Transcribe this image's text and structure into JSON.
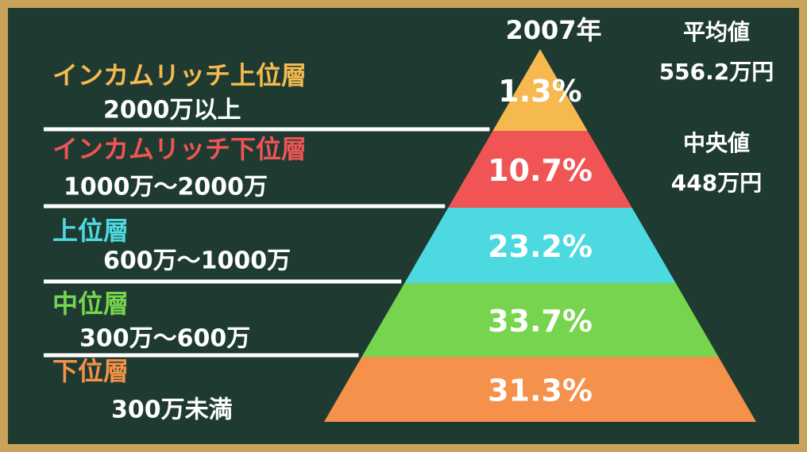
{
  "year": "2007年",
  "stats": [
    {
      "label": "平均値",
      "value": "556.2万円"
    },
    {
      "label": "中央値",
      "value": "448万円"
    }
  ],
  "tiers": [
    {
      "name": "インカムリッチ上位層",
      "range": "2000万以上",
      "share": "1.3%",
      "color": "#f5b94f"
    },
    {
      "name": "インカムリッチ下位層",
      "range": "1000万～2000万",
      "share": "10.7%",
      "color": "#f05454"
    },
    {
      "name": "上位層",
      "range": "600万～1000万",
      "share": "23.2%",
      "color": "#4dd9e0"
    },
    {
      "name": "中位層",
      "range": "300万～600万",
      "share": "33.7%",
      "color": "#77d44f"
    },
    {
      "name": "下位層",
      "range": "300万未満",
      "share": "31.3%",
      "color": "#f5914a"
    }
  ]
}
